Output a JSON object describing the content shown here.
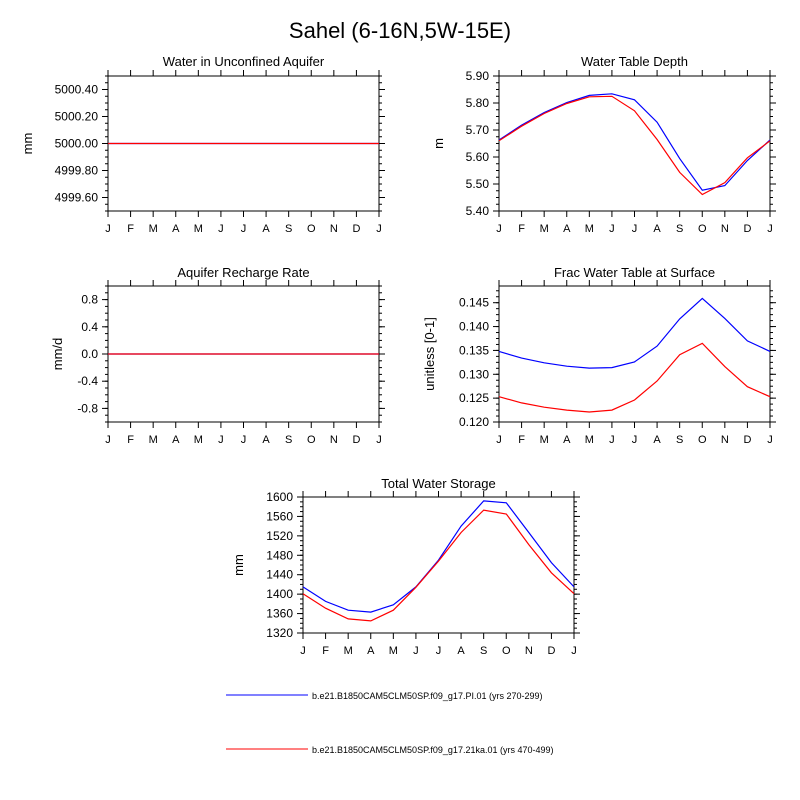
{
  "figure": {
    "title": "Sahel (6-16N,5W-15E)",
    "months": [
      "J",
      "F",
      "M",
      "A",
      "M",
      "J",
      "J",
      "A",
      "S",
      "O",
      "N",
      "D",
      "J"
    ]
  },
  "series_styles": [
    {
      "name": "b.e21.B1850CAM5CLM50SP.f09_g17.PI.01 (yrs 270-299)",
      "color": "#0000ff"
    },
    {
      "name": "b.e21.B1850CAM5CLM50SP.f09_g17.21ka.01 (yrs 470-499)",
      "color": "#ff0000"
    }
  ],
  "legend": {
    "items": [
      "b.e21.B1850CAM5CLM50SP.f09_g17.PI.01 (yrs 270-299)",
      "b.e21.B1850CAM5CLM50SP.f09_g17.21ka.01 (yrs 470-499)"
    ]
  },
  "chart_data": [
    {
      "id": "aquifer",
      "type": "line",
      "title": "Water in Unconfined Aquifer",
      "xlabel": "",
      "ylabel": "mm",
      "ylim": [
        4999.5,
        5000.5
      ],
      "yticks": [
        4999.6,
        4999.8,
        5000.0,
        5000.2,
        5000.4
      ],
      "ytick_labels": [
        "4999.60",
        "4999.80",
        "5000.00",
        "5000.20",
        "5000.40"
      ],
      "categories": [
        "J",
        "F",
        "M",
        "A",
        "M",
        "J",
        "J",
        "A",
        "S",
        "O",
        "N",
        "D",
        "J"
      ],
      "series": [
        {
          "name": "b.e21.B1850CAM5CLM50SP.f09_g17.PI.01 (yrs 270-299)",
          "values": [
            5000,
            5000,
            5000,
            5000,
            5000,
            5000,
            5000,
            5000,
            5000,
            5000,
            5000,
            5000,
            5000
          ]
        },
        {
          "name": "b.e21.B1850CAM5CLM50SP.f09_g17.21ka.01 (yrs 470-499)",
          "values": [
            5000,
            5000,
            5000,
            5000,
            5000,
            5000,
            5000,
            5000,
            5000,
            5000,
            5000,
            5000,
            5000
          ]
        }
      ]
    },
    {
      "id": "wtd",
      "type": "line",
      "title": "Water Table Depth",
      "xlabel": "",
      "ylabel": "m",
      "ylim": [
        5.4,
        5.9
      ],
      "yticks": [
        5.4,
        5.5,
        5.6,
        5.7,
        5.8,
        5.9
      ],
      "ytick_labels": [
        "5.40",
        "5.50",
        "5.60",
        "5.70",
        "5.80",
        "5.90"
      ],
      "categories": [
        "J",
        "F",
        "M",
        "A",
        "M",
        "J",
        "J",
        "A",
        "S",
        "O",
        "N",
        "D",
        "J"
      ],
      "series": [
        {
          "name": "b.e21.B1850CAM5CLM50SP.f09_g17.PI.01 (yrs 270-299)",
          "values": [
            5.663,
            5.718,
            5.765,
            5.802,
            5.828,
            5.834,
            5.812,
            5.729,
            5.594,
            5.477,
            5.494,
            5.587,
            5.663
          ]
        },
        {
          "name": "b.e21.B1850CAM5CLM50SP.f09_g17.21ka.01 (yrs 470-499)",
          "values": [
            5.66,
            5.714,
            5.761,
            5.798,
            5.823,
            5.825,
            5.771,
            5.665,
            5.543,
            5.461,
            5.505,
            5.597,
            5.66
          ]
        }
      ]
    },
    {
      "id": "recharge",
      "type": "line",
      "title": "Aquifer Recharge Rate",
      "xlabel": "",
      "ylabel": "mm/d",
      "ylim": [
        -1.0,
        1.0
      ],
      "yticks": [
        -0.8,
        -0.4,
        0.0,
        0.4,
        0.8
      ],
      "ytick_labels": [
        "-0.8",
        "-0.4",
        "0.0",
        "0.4",
        "0.8"
      ],
      "categories": [
        "J",
        "F",
        "M",
        "A",
        "M",
        "J",
        "J",
        "A",
        "S",
        "O",
        "N",
        "D",
        "J"
      ],
      "series": [
        {
          "name": "b.e21.B1850CAM5CLM50SP.f09_g17.PI.01 (yrs 270-299)",
          "values": [
            0,
            0,
            0,
            0,
            0,
            0,
            0,
            0,
            0,
            0,
            0,
            0,
            0
          ]
        },
        {
          "name": "b.e21.B1850CAM5CLM50SP.f09_g17.21ka.01 (yrs 470-499)",
          "values": [
            0,
            0,
            0,
            0,
            0,
            0,
            0,
            0,
            0,
            0,
            0,
            0,
            0
          ]
        }
      ]
    },
    {
      "id": "fracwt",
      "type": "line",
      "title": "Frac Water Table at Surface",
      "xlabel": "",
      "ylabel": "unitless [0-1]",
      "ylim": [
        0.12,
        0.1485
      ],
      "yticks": [
        0.12,
        0.125,
        0.13,
        0.135,
        0.14,
        0.145
      ],
      "ytick_labels": [
        "0.120",
        "0.125",
        "0.130",
        "0.135",
        "0.140",
        "0.145"
      ],
      "categories": [
        "J",
        "F",
        "M",
        "A",
        "M",
        "J",
        "J",
        "A",
        "S",
        "O",
        "N",
        "D",
        "J"
      ],
      "series": [
        {
          "name": "b.e21.B1850CAM5CLM50SP.f09_g17.PI.01 (yrs 270-299)",
          "values": [
            0.1348,
            0.1334,
            0.1324,
            0.1317,
            0.1313,
            0.1314,
            0.1326,
            0.1359,
            0.1416,
            0.1459,
            0.1417,
            0.137,
            0.1348
          ]
        },
        {
          "name": "b.e21.B1850CAM5CLM50SP.f09_g17.21ka.01 (yrs 470-499)",
          "values": [
            0.1253,
            0.124,
            0.1231,
            0.1225,
            0.1221,
            0.1225,
            0.1246,
            0.1286,
            0.1341,
            0.1365,
            0.1316,
            0.1274,
            0.1253
          ]
        }
      ]
    },
    {
      "id": "tws",
      "type": "line",
      "title": "Total Water Storage",
      "xlabel": "",
      "ylabel": "mm",
      "ylim": [
        1320,
        1600
      ],
      "yticks": [
        1320,
        1360,
        1400,
        1440,
        1480,
        1520,
        1560,
        1600
      ],
      "ytick_labels": [
        "1320",
        "1360",
        "1400",
        "1440",
        "1480",
        "1520",
        "1560",
        "1600"
      ],
      "categories": [
        "J",
        "F",
        "M",
        "A",
        "M",
        "J",
        "J",
        "A",
        "S",
        "O",
        "N",
        "D",
        "J"
      ],
      "series": [
        {
          "name": "b.e21.B1850CAM5CLM50SP.f09_g17.PI.01 (yrs 270-299)",
          "values": [
            1415,
            1385,
            1367,
            1363,
            1378,
            1415,
            1470,
            1540,
            1592,
            1588,
            1527,
            1465,
            1415
          ]
        },
        {
          "name": "b.e21.B1850CAM5CLM50SP.f09_g17.21ka.01 (yrs 470-499)",
          "values": [
            1401,
            1371,
            1349,
            1345,
            1367,
            1414,
            1468,
            1527,
            1573,
            1565,
            1502,
            1444,
            1401
          ]
        }
      ]
    }
  ]
}
